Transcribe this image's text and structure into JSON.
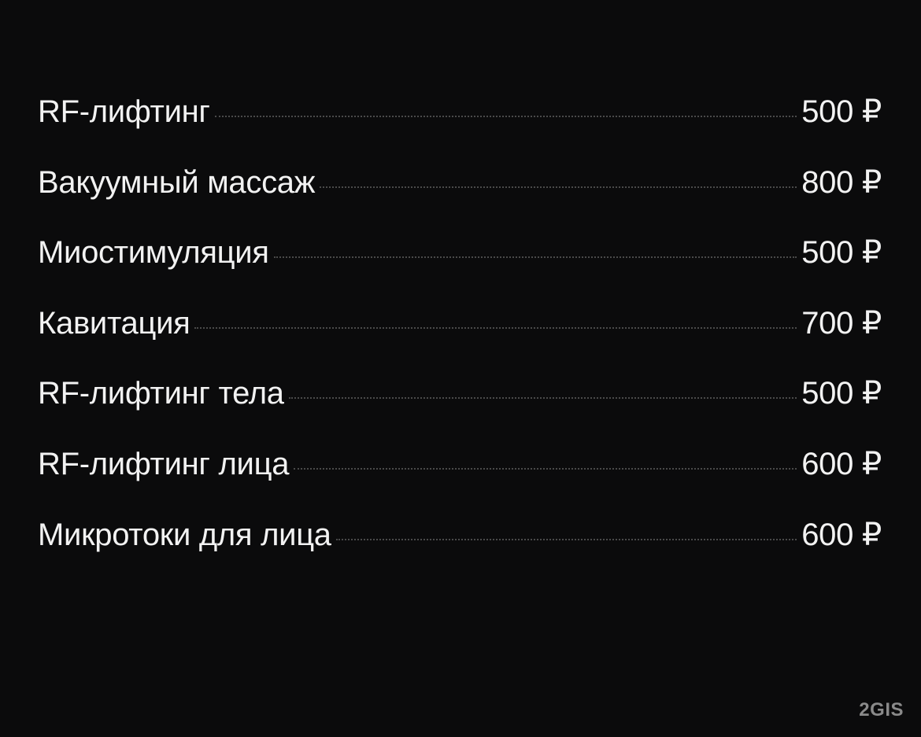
{
  "price_list": {
    "items": [
      {
        "name": "RF-лифтинг",
        "price": "500 ₽"
      },
      {
        "name": "Вакуумный массаж",
        "price": "800 ₽"
      },
      {
        "name": "Миостимуляция",
        "price": "500 ₽"
      },
      {
        "name": "Кавитация",
        "price": "700 ₽"
      },
      {
        "name": "RF-лифтинг тела",
        "price": "500 ₽"
      },
      {
        "name": "RF-лифтинг лица",
        "price": "600 ₽"
      },
      {
        "name": "Микротоки для лица",
        "price": "600 ₽"
      }
    ]
  },
  "watermark": {
    "text": "2GIS"
  },
  "colors": {
    "background": "#0b0b0c",
    "text": "#f2f2f2",
    "leader": "#4a4a4a",
    "watermark": "#8a8a8a"
  }
}
